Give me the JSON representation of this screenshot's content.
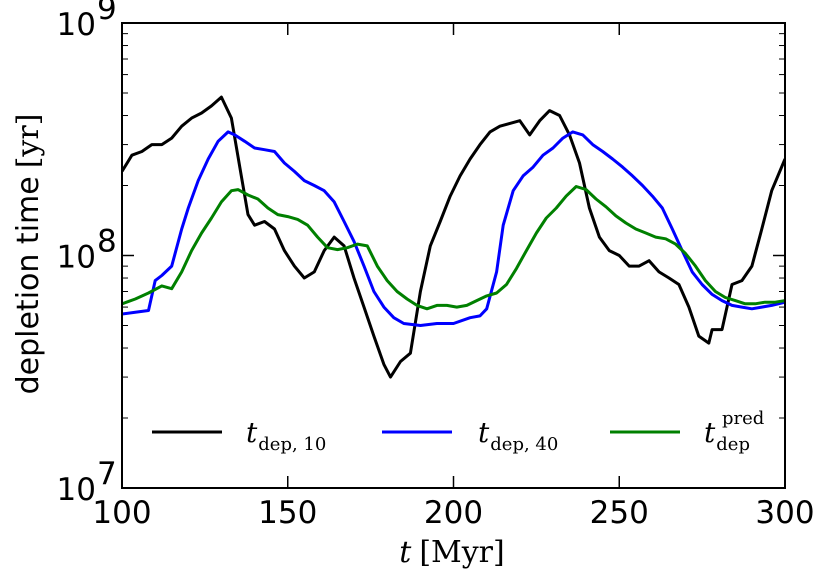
{
  "chart_data": {
    "type": "line",
    "xlabel": {
      "var": "t",
      "unit": "[Myr]"
    },
    "ylabel": {
      "text": "depletion time",
      "unit": "[yr]"
    },
    "xlim": [
      100,
      300
    ],
    "ylim": [
      10000000,
      1000000000
    ],
    "yscale": "log",
    "xticks": [
      100,
      150,
      200,
      250,
      300
    ],
    "xtick_labels": [
      "100",
      "150",
      "200",
      "250",
      "300"
    ],
    "yticks": [
      10000000,
      100000000,
      1000000000
    ],
    "ytick_labels": [
      {
        "base": "10",
        "exp": "7"
      },
      {
        "base": "10",
        "exp": "8"
      },
      {
        "base": "10",
        "exp": "9"
      }
    ],
    "legend_position": "bottom",
    "series": [
      {
        "name": "t_dep,10",
        "label": {
          "main": "t",
          "sub": "dep, 10",
          "sup": ""
        },
        "color": "#000000",
        "x": [
          100,
          103,
          106,
          109,
          112,
          115,
          118,
          121,
          124,
          127,
          130,
          133,
          136,
          138,
          140,
          143,
          146,
          149,
          152,
          155,
          158,
          161,
          164,
          167,
          170,
          173,
          176,
          179,
          181,
          184,
          187,
          190,
          193,
          196,
          199,
          202,
          205,
          208,
          211,
          214,
          217,
          220,
          223,
          226,
          229,
          232,
          235,
          238,
          241,
          244,
          247,
          250,
          253,
          256,
          259,
          262,
          265,
          268,
          271,
          274,
          277,
          278,
          281,
          284,
          287,
          290,
          293,
          296,
          300
        ],
        "y": [
          230000000.0,
          270000000.0,
          280000000.0,
          300000000.0,
          300000000.0,
          320000000.0,
          360000000.0,
          390000000.0,
          410000000.0,
          440000000.0,
          480000000.0,
          390000000.0,
          220000000.0,
          150000000.0,
          135000000.0,
          140000000.0,
          130000000.0,
          105000000.0,
          90000000.0,
          80000000.0,
          85000000.0,
          105000000.0,
          120000000.0,
          110000000.0,
          80000000.0,
          60000000.0,
          45000000.0,
          34000000.0,
          30000000.0,
          35000000.0,
          38000000.0,
          70000000.0,
          110000000.0,
          140000000.0,
          180000000.0,
          220000000.0,
          260000000.0,
          300000000.0,
          340000000.0,
          360000000.0,
          370000000.0,
          380000000.0,
          330000000.0,
          380000000.0,
          420000000.0,
          400000000.0,
          330000000.0,
          250000000.0,
          160000000.0,
          120000000.0,
          105000000.0,
          100000000.0,
          90000000.0,
          90000000.0,
          95000000.0,
          85000000.0,
          80000000.0,
          75000000.0,
          60000000.0,
          45000000.0,
          42000000.0,
          48000000.0,
          48000000.0,
          75000000.0,
          78000000.0,
          90000000.0,
          130000000.0,
          190000000.0,
          260000000.0
        ]
      },
      {
        "name": "t_dep,40",
        "label": {
          "main": "t",
          "sub": "dep, 40",
          "sup": ""
        },
        "color": "#0000ff",
        "x": [
          100,
          104,
          108,
          110,
          112,
          115,
          118,
          120,
          123,
          126,
          129,
          132,
          134,
          137,
          140,
          143,
          146,
          149,
          152,
          155,
          158,
          161,
          164,
          167,
          170,
          173,
          176,
          179,
          182,
          185,
          190,
          195,
          200,
          205,
          208,
          210,
          213,
          215,
          218,
          221,
          224,
          227,
          230,
          233,
          236,
          239,
          242,
          245,
          248,
          251,
          254,
          257,
          260,
          263,
          266,
          269,
          272,
          275,
          278,
          281,
          284,
          287,
          290,
          293,
          296,
          300
        ],
        "y": [
          56000000.0,
          57000000.0,
          58000000.0,
          78000000.0,
          82000000.0,
          90000000.0,
          130000000.0,
          160000000.0,
          210000000.0,
          260000000.0,
          310000000.0,
          340000000.0,
          330000000.0,
          310000000.0,
          290000000.0,
          285000000.0,
          280000000.0,
          250000000.0,
          230000000.0,
          210000000.0,
          200000000.0,
          190000000.0,
          170000000.0,
          140000000.0,
          115000000.0,
          90000000.0,
          70000000.0,
          60000000.0,
          54000000.0,
          51000000.0,
          50000000.0,
          51000000.0,
          51000000.0,
          54000000.0,
          55000000.0,
          59000000.0,
          85000000.0,
          135000000.0,
          190000000.0,
          220000000.0,
          240000000.0,
          270000000.0,
          290000000.0,
          320000000.0,
          340000000.0,
          330000000.0,
          300000000.0,
          280000000.0,
          260000000.0,
          240000000.0,
          220000000.0,
          200000000.0,
          180000000.0,
          160000000.0,
          130000000.0,
          105000000.0,
          85000000.0,
          75000000.0,
          68000000.0,
          64000000.0,
          61000000.0,
          60000000.0,
          59000000.0,
          60000000.0,
          61000000.0,
          63000000.0
        ]
      },
      {
        "name": "t_dep^pred",
        "label": {
          "main": "t",
          "sub": "dep",
          "sup": "pred"
        },
        "color": "#008000",
        "x": [
          100,
          104,
          108,
          112,
          115,
          118,
          121,
          124,
          127,
          130,
          133,
          135,
          138,
          141,
          144,
          147,
          150,
          153,
          156,
          159,
          162,
          165,
          168,
          171,
          174,
          177,
          180,
          183,
          186,
          189,
          192,
          195,
          198,
          201,
          204,
          207,
          210,
          213,
          216,
          219,
          222,
          225,
          228,
          231,
          234,
          237,
          240,
          243,
          246,
          249,
          252,
          255,
          258,
          261,
          264,
          267,
          270,
          273,
          276,
          279,
          282,
          285,
          288,
          291,
          294,
          297,
          300
        ],
        "y": [
          62000000.0,
          65000000.0,
          69000000.0,
          74000000.0,
          72000000.0,
          85000000.0,
          105000000.0,
          125000000.0,
          145000000.0,
          170000000.0,
          190000000.0,
          192000000.0,
          182000000.0,
          175000000.0,
          160000000.0,
          150000000.0,
          147000000.0,
          143000000.0,
          135000000.0,
          120000000.0,
          108000000.0,
          106000000.0,
          108000000.0,
          112000000.0,
          110000000.0,
          90000000.0,
          78000000.0,
          70000000.0,
          65000000.0,
          61000000.0,
          59000000.0,
          61000000.0,
          61000000.0,
          60000000.0,
          61000000.0,
          64000000.0,
          67000000.0,
          69000000.0,
          75000000.0,
          88000000.0,
          105000000.0,
          125000000.0,
          145000000.0,
          160000000.0,
          180000000.0,
          198000000.0,
          192000000.0,
          175000000.0,
          162000000.0,
          148000000.0,
          138000000.0,
          130000000.0,
          125000000.0,
          120000000.0,
          118000000.0,
          112000000.0,
          102000000.0,
          90000000.0,
          78000000.0,
          70000000.0,
          66000000.0,
          64000000.0,
          62000000.0,
          62000000.0,
          63000000.0,
          63000000.0,
          64000000.0
        ]
      }
    ]
  }
}
